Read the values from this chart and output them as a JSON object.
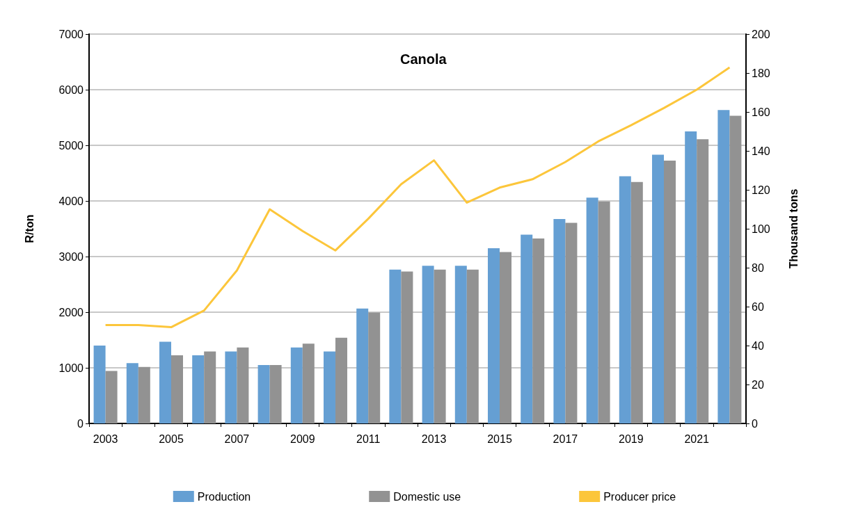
{
  "chart_data": {
    "type": "bar",
    "title": "Canola",
    "ylabel": "R/ton",
    "y2label": "Thousand tons",
    "categories": [
      "2003",
      null,
      "2005",
      null,
      "2007",
      null,
      "2009",
      null,
      "2011",
      null,
      "2013",
      null,
      "2015",
      null,
      "2017",
      null,
      "2019",
      null,
      "2021",
      null
    ],
    "series": [
      {
        "name": "Production",
        "axis": "y2",
        "color": "#659fd3",
        "values": [
          40,
          31,
          42,
          35,
          37,
          30,
          39,
          37,
          59,
          79,
          81,
          81,
          90,
          97,
          105,
          116,
          127,
          138,
          150,
          161
        ]
      },
      {
        "name": "Domestic use",
        "axis": "y2",
        "color": "#929292",
        "values": [
          27,
          29,
          35,
          37,
          39,
          30,
          41,
          44,
          57,
          78,
          79,
          79,
          88,
          95,
          103,
          114,
          124,
          135,
          146,
          158
        ]
      },
      {
        "name": "Producer price",
        "type": "line",
        "color": "#fcc63b",
        "marker": "none",
        "values": [
          1770,
          1770,
          1730,
          2030,
          2750,
          3850,
          3460,
          3110,
          3680,
          4300,
          4730,
          3970,
          4240,
          4390,
          4700,
          5070,
          5360,
          5670,
          6000,
          6400
        ]
      }
    ],
    "ylim": [
      0,
      7000
    ],
    "yticks": [
      0,
      1000,
      2000,
      3000,
      4000,
      5000,
      6000,
      7000
    ],
    "y2lim": [
      0,
      200
    ],
    "y2ticks": [
      0,
      20,
      40,
      60,
      80,
      100,
      120,
      140,
      160,
      180,
      200
    ],
    "grid": "y",
    "legend": "bottom"
  }
}
